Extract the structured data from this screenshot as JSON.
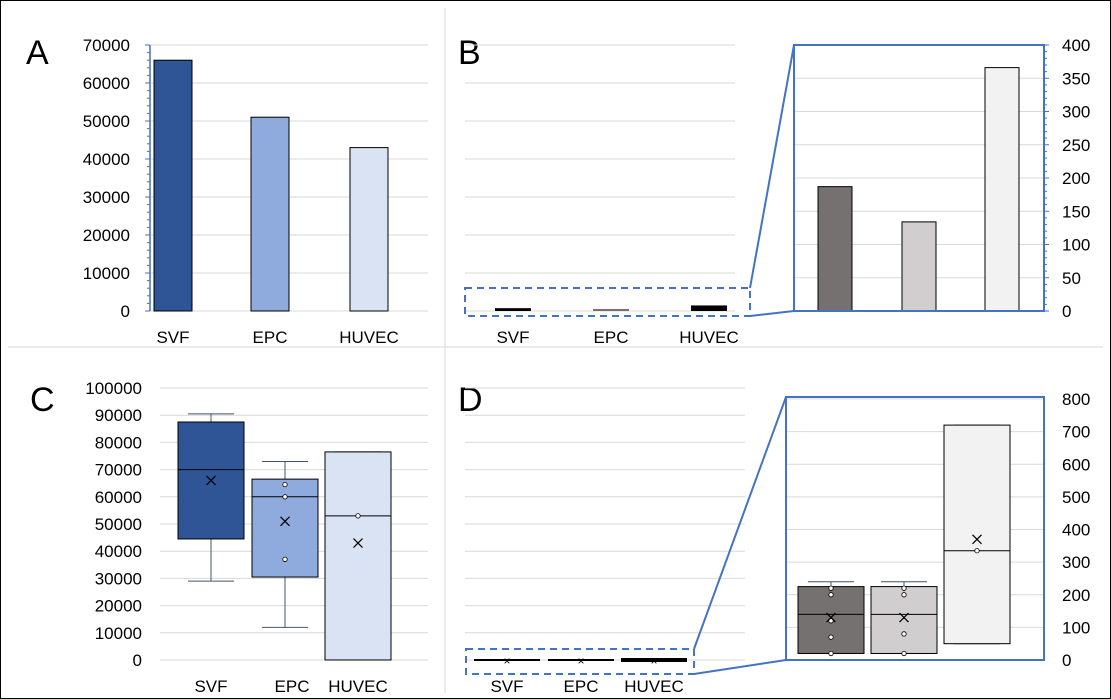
{
  "colors": {
    "svf": "#2f5597",
    "epc": "#8faadc",
    "huvec": "#dae3f3",
    "svf_zoom": "#767171",
    "epc_zoom": "#d0cece",
    "huvec_zoom": "#f2f2f2",
    "accent": "#4472c4",
    "grid": "#d9d9d9",
    "text": "#000000"
  },
  "panels": {
    "A": "A",
    "B": "B",
    "C": "C",
    "D": "D"
  },
  "chart_data": [
    {
      "panel": "A",
      "type": "bar",
      "categories": [
        "SVF",
        "EPC",
        "HUVEC"
      ],
      "values": [
        66000,
        51000,
        43000
      ],
      "ylim": [
        0,
        70000
      ],
      "yticks": [
        "0",
        "10000",
        "20000",
        "30000",
        "40000",
        "50000",
        "60000",
        "70000"
      ],
      "grid": true
    },
    {
      "panel": "B",
      "type": "bar",
      "categories": [
        "SVF",
        "EPC",
        "HUVEC"
      ],
      "values": [
        187,
        134,
        366
      ],
      "ylim": [
        0,
        70000
      ],
      "grid": true,
      "inset": {
        "type": "bar",
        "values": [
          187,
          134,
          366
        ],
        "ylim": [
          0,
          400
        ],
        "yticks": [
          "0",
          "50",
          "100",
          "150",
          "200",
          "250",
          "300",
          "350",
          "400"
        ],
        "axis_position": "right"
      }
    },
    {
      "panel": "C",
      "type": "box",
      "categories": [
        "SVF",
        "EPC",
        "HUVEC"
      ],
      "ylim": [
        0,
        100000
      ],
      "yticks": [
        "0",
        "10000",
        "20000",
        "30000",
        "40000",
        "50000",
        "60000",
        "70000",
        "80000",
        "90000",
        "100000"
      ],
      "grid": true,
      "boxes": [
        {
          "whisker_low": 29000,
          "q1": 44500,
          "median": 70000,
          "q3": 87500,
          "whisker_high": 90500,
          "mean": 66000,
          "points": []
        },
        {
          "whisker_low": 12000,
          "q1": 30500,
          "median": 60000,
          "q3": 66500,
          "whisker_high": 73000,
          "mean": 51000,
          "points": [
            37000,
            60000,
            64500
          ]
        },
        {
          "whisker_low": 0,
          "q1": 0,
          "median": 53000,
          "q3": 76500,
          "whisker_high": 76500,
          "mean": 43000,
          "points": [
            53000
          ]
        }
      ]
    },
    {
      "panel": "D",
      "type": "box",
      "categories": [
        "SVF",
        "EPC",
        "HUVEC"
      ],
      "ylim": [
        0,
        100000
      ],
      "grid": true,
      "inset": {
        "type": "box",
        "ylim": [
          0,
          800
        ],
        "yticks": [
          "0",
          "100",
          "200",
          "300",
          "400",
          "500",
          "600",
          "700",
          "800"
        ],
        "axis_position": "right",
        "boxes": [
          {
            "whisker_low": 20,
            "q1": 20,
            "median": 140,
            "q3": 225,
            "whisker_high": 240,
            "mean": 130,
            "points": [
              20,
              70,
              120,
              200,
              220
            ]
          },
          {
            "whisker_low": 20,
            "q1": 20,
            "median": 140,
            "q3": 225,
            "whisker_high": 240,
            "mean": 130,
            "points": [
              20,
              80,
              200,
              220
            ]
          },
          {
            "whisker_low": 50,
            "q1": 50,
            "median": 335,
            "q3": 720,
            "whisker_high": 720,
            "mean": 370,
            "points": [
              335
            ]
          }
        ]
      }
    }
  ]
}
